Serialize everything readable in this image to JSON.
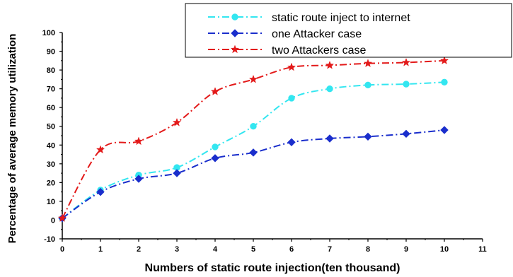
{
  "chart_data": {
    "type": "line",
    "xlabel": "Numbers of static route injection(ten thousand)",
    "ylabel": "Percentage of average memory utilization",
    "xlim": [
      0,
      11
    ],
    "ylim": [
      -10,
      100
    ],
    "xticks": [
      0,
      1,
      2,
      3,
      4,
      5,
      6,
      7,
      8,
      9,
      10,
      11
    ],
    "yticks": [
      -10,
      0,
      10,
      20,
      30,
      40,
      50,
      60,
      70,
      80,
      90,
      100
    ],
    "grid": false,
    "legend_position": "top-right",
    "x": [
      0,
      1,
      2,
      3,
      4,
      5,
      6,
      7,
      8,
      9,
      10
    ],
    "series": [
      {
        "name": "static route inject to internet",
        "color": "#33e6f0",
        "marker": "circle",
        "values": [
          1,
          16,
          24,
          28,
          39,
          50,
          65,
          70,
          72,
          72.5,
          73.5
        ]
      },
      {
        "name": "one Attacker case",
        "color": "#1a2ecc",
        "marker": "diamond",
        "values": [
          1,
          15,
          22,
          25,
          33,
          36,
          41.5,
          43.5,
          44.5,
          46,
          48
        ]
      },
      {
        "name": "two Attackers case",
        "color": "#e31a1a",
        "marker": "star",
        "values": [
          1,
          37.5,
          42,
          52,
          68.5,
          75,
          81.5,
          82.5,
          83.5,
          84,
          85
        ]
      }
    ]
  }
}
